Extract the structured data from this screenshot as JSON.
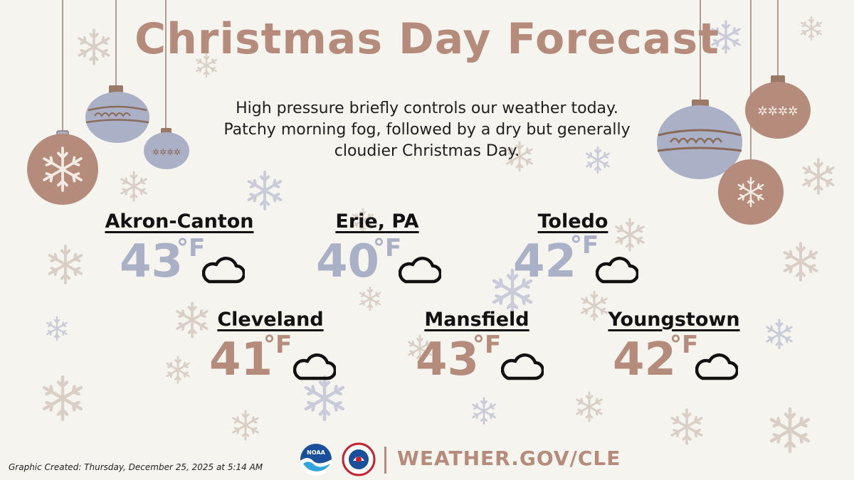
{
  "title": "Christmas Day Forecast",
  "summary": [
    "High pressure briefly controls our weather today.",
    "Patchy morning fog, followed by a dry but generally",
    "cloudier Christmas Day."
  ],
  "cities": [
    {
      "name": "Akron-Canton",
      "temp": "43",
      "unit": "°F",
      "sky": "cloudy-icon",
      "color": "#aab0c6"
    },
    {
      "name": "Erie, PA",
      "temp": "40",
      "unit": "°F",
      "sky": "cloudy-icon",
      "color": "#aab0c6"
    },
    {
      "name": "Toledo",
      "temp": "42",
      "unit": "°F",
      "sky": "cloudy-icon",
      "color": "#aab0c6"
    },
    {
      "name": "Cleveland",
      "temp": "41",
      "unit": "°F",
      "sky": "cloudy-icon",
      "color": "#b58c7b"
    },
    {
      "name": "Mansfield",
      "temp": "43",
      "unit": "°F",
      "sky": "cloudy-icon",
      "color": "#b58c7b"
    },
    {
      "name": "Youngstown",
      "temp": "42",
      "unit": "°F",
      "sky": "cloudy-icon",
      "color": "#b58c7b"
    }
  ],
  "footer": {
    "created": "Graphic Created: Thursday, December 25, 2025 at 5:14 AM",
    "url": "WEATHER.GOV/CLE"
  },
  "logos": [
    "noaa-logo",
    "nws-logo"
  ],
  "colors": {
    "background": "#f6f4ef",
    "brown": "#b58c7b",
    "blue_gray": "#aab0c6",
    "text": "#121212"
  }
}
